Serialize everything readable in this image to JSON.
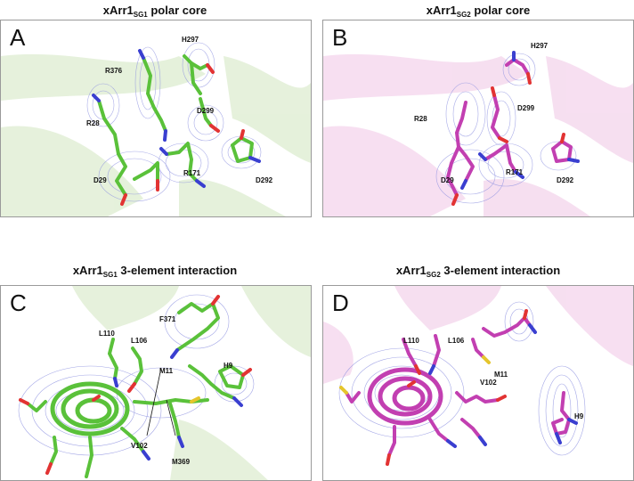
{
  "panels": [
    {
      "letter": "A",
      "title": {
        "base": "xArr1",
        "sub": "SG1",
        "rest": " polar core"
      },
      "labels": [
        "R376",
        "H297",
        "D299",
        "R28",
        "D292",
        "R171",
        "D29"
      ]
    },
    {
      "letter": "B",
      "title": {
        "base": "xArr1",
        "sub": "SG2",
        "rest": " polar core"
      },
      "labels": [
        "H297",
        "R28",
        "D299",
        "D29",
        "R171",
        "D292"
      ]
    },
    {
      "letter": "C",
      "title": {
        "base": "xArr1",
        "sub": "SG1",
        "rest": " 3-element interaction"
      },
      "labels": [
        "F371",
        "L110",
        "L106",
        "M11",
        "H9",
        "V102",
        "M369"
      ]
    },
    {
      "letter": "D",
      "title": {
        "base": "xArr1",
        "sub": "SG2",
        "rest": " 3-element interaction"
      },
      "labels": [
        "L110",
        "L106",
        "M11",
        "V102",
        "H9"
      ]
    }
  ],
  "colors": {
    "sg1_carbon": "#5ac13a",
    "sg2_carbon": "#c23fb1",
    "nitrogen": "#3a3fd0",
    "oxygen": "#e23333",
    "sulfur": "#e5c52c",
    "density_mesh": "#6f74d8",
    "sg1_cartoon": "#e3f0d8",
    "sg2_cartoon": "#f6dcef"
  }
}
